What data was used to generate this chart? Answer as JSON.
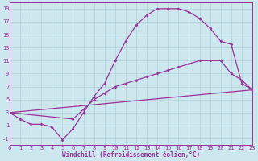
{
  "bg_color": "#cce8ee",
  "grid_color": "#b0d0d8",
  "line_color": "#993399",
  "xlabel": "Windchill (Refroidissement éolien,°C)",
  "curve1_x": [
    0,
    1,
    2,
    3,
    4,
    5,
    6,
    7,
    8,
    9,
    10,
    11,
    12,
    13,
    14,
    15,
    16,
    17,
    18
  ],
  "curve1_y": [
    3,
    2,
    1.2,
    1.2,
    0.8,
    -1.2,
    0.5,
    3.0,
    5.5,
    7.5,
    11.0,
    14.0,
    16.5,
    18.0,
    19.0,
    19.0,
    19.0,
    18.5,
    17.5
  ],
  "curve1_tail_x": [
    18,
    19,
    20,
    21,
    22,
    23
  ],
  "curve1_tail_y": [
    17.5,
    16.0,
    14.0,
    13.5,
    7.5,
    6.5
  ],
  "curve2_x": [
    0,
    6,
    7,
    8,
    9,
    10,
    11,
    12,
    13,
    14,
    15,
    16,
    17,
    18,
    19,
    20,
    21,
    22,
    23
  ],
  "curve2_y": [
    3,
    2.0,
    3.5,
    5.0,
    6.0,
    7.0,
    7.5,
    8.0,
    8.5,
    9.0,
    9.5,
    10.0,
    10.5,
    11.0,
    11.0,
    11.0,
    9.0,
    8.0,
    6.5
  ],
  "curve3_x": [
    0,
    23
  ],
  "curve3_y": [
    3,
    6.5
  ],
  "xlim": [
    0,
    23
  ],
  "ylim": [
    -2,
    20
  ],
  "yticks": [
    -1,
    1,
    3,
    5,
    7,
    9,
    11,
    13,
    15,
    17,
    19
  ],
  "xticks": [
    0,
    1,
    2,
    3,
    4,
    5,
    6,
    7,
    8,
    9,
    10,
    11,
    12,
    13,
    14,
    15,
    16,
    17,
    18,
    19,
    20,
    21,
    22,
    23
  ],
  "xlabel_fontsize": 5.5,
  "tick_fontsize": 5.0
}
